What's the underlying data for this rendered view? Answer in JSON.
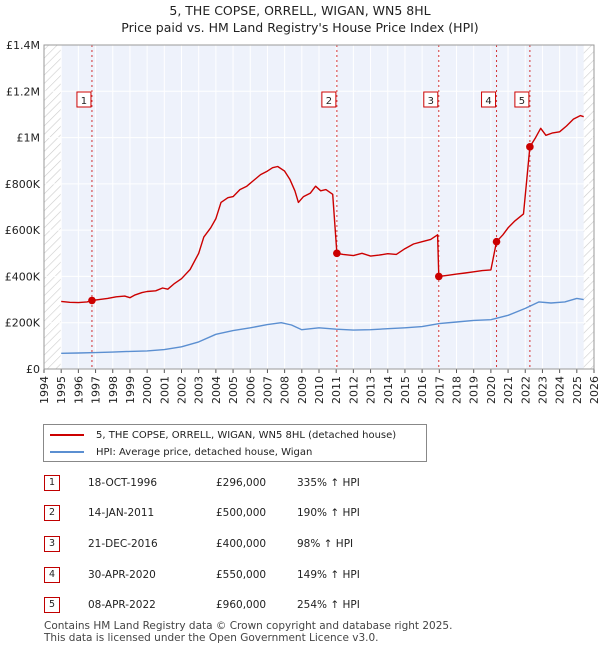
{
  "title_line1": "5, THE COPSE, ORRELL, WIGAN, WN5 8HL",
  "title_line2": "Price paid vs. HM Land Registry's House Price Index (HPI)",
  "chart_data": {
    "type": "line",
    "xlim": [
      1994,
      2026
    ],
    "ylim": [
      0,
      1400000
    ],
    "x_ticks": [
      "1994",
      "1995",
      "1996",
      "1997",
      "1998",
      "1999",
      "2000",
      "2001",
      "2002",
      "2003",
      "2004",
      "2005",
      "2006",
      "2007",
      "2008",
      "2009",
      "2010",
      "2011",
      "2012",
      "2013",
      "2014",
      "2015",
      "2016",
      "2017",
      "2018",
      "2019",
      "2020",
      "2021",
      "2022",
      "2023",
      "2024",
      "2025",
      "2026"
    ],
    "y_ticks": [
      {
        "value": 0,
        "label": "£0"
      },
      {
        "value": 200000,
        "label": "£200K"
      },
      {
        "value": 400000,
        "label": "£400K"
      },
      {
        "value": 600000,
        "label": "£600K"
      },
      {
        "value": 800000,
        "label": "£800K"
      },
      {
        "value": 1000000,
        "label": "£1M"
      },
      {
        "value": 1200000,
        "label": "£1.2M"
      },
      {
        "value": 1400000,
        "label": "£1.4M"
      }
    ],
    "hatch_ranges": [
      [
        1994,
        1995
      ],
      [
        2025.4,
        2026
      ]
    ],
    "series": [
      {
        "name": "5, THE COPSE, ORRELL, WIGAN, WN5 8HL (detached house)",
        "color": "#cc0000",
        "points": [
          [
            1995,
            292000
          ],
          [
            1995.5,
            288000
          ],
          [
            1996,
            287000
          ],
          [
            1996.5,
            290000
          ],
          [
            1996.79,
            296000
          ],
          [
            1997.2,
            300000
          ],
          [
            1997.7,
            305000
          ],
          [
            1998.2,
            312000
          ],
          [
            1998.7,
            315000
          ],
          [
            1999,
            308000
          ],
          [
            1999.3,
            320000
          ],
          [
            1999.7,
            330000
          ],
          [
            2000,
            335000
          ],
          [
            2000.5,
            338000
          ],
          [
            2000.9,
            350000
          ],
          [
            2001.2,
            345000
          ],
          [
            2001.6,
            370000
          ],
          [
            2002,
            390000
          ],
          [
            2002.5,
            430000
          ],
          [
            2003,
            500000
          ],
          [
            2003.3,
            570000
          ],
          [
            2003.7,
            610000
          ],
          [
            2004,
            650000
          ],
          [
            2004.3,
            720000
          ],
          [
            2004.7,
            740000
          ],
          [
            2005,
            745000
          ],
          [
            2005.4,
            775000
          ],
          [
            2005.8,
            790000
          ],
          [
            2006.2,
            815000
          ],
          [
            2006.6,
            840000
          ],
          [
            2007,
            855000
          ],
          [
            2007.3,
            870000
          ],
          [
            2007.6,
            875000
          ],
          [
            2008,
            855000
          ],
          [
            2008.3,
            820000
          ],
          [
            2008.6,
            770000
          ],
          [
            2008.8,
            720000
          ],
          [
            2009.1,
            745000
          ],
          [
            2009.5,
            760000
          ],
          [
            2009.8,
            790000
          ],
          [
            2010.1,
            770000
          ],
          [
            2010.4,
            775000
          ],
          [
            2010.8,
            755000
          ],
          [
            2011.04,
            500000
          ],
          [
            2011.4,
            495000
          ],
          [
            2012,
            490000
          ],
          [
            2012.5,
            500000
          ],
          [
            2013,
            488000
          ],
          [
            2013.5,
            492000
          ],
          [
            2014,
            498000
          ],
          [
            2014.5,
            495000
          ],
          [
            2015,
            520000
          ],
          [
            2015.5,
            540000
          ],
          [
            2016,
            550000
          ],
          [
            2016.5,
            560000
          ],
          [
            2016.9,
            580000
          ],
          [
            2016.97,
            400000
          ],
          [
            2017.5,
            405000
          ],
          [
            2018,
            410000
          ],
          [
            2018.5,
            415000
          ],
          [
            2019,
            420000
          ],
          [
            2019.5,
            425000
          ],
          [
            2020,
            428000
          ],
          [
            2020.33,
            550000
          ],
          [
            2020.7,
            580000
          ],
          [
            2021,
            610000
          ],
          [
            2021.4,
            640000
          ],
          [
            2021.9,
            670000
          ],
          [
            2022.27,
            960000
          ],
          [
            2022.6,
            1000000
          ],
          [
            2022.9,
            1040000
          ],
          [
            2023.2,
            1010000
          ],
          [
            2023.6,
            1020000
          ],
          [
            2024,
            1025000
          ],
          [
            2024.4,
            1050000
          ],
          [
            2024.8,
            1080000
          ],
          [
            2025.2,
            1095000
          ],
          [
            2025.4,
            1090000
          ]
        ]
      },
      {
        "name": "HPI: Average price, detached house, Wigan",
        "color": "#5b8fd1",
        "points": [
          [
            1995,
            68000
          ],
          [
            1996,
            69000
          ],
          [
            1997,
            71000
          ],
          [
            1998,
            73000
          ],
          [
            1999,
            76000
          ],
          [
            2000,
            78000
          ],
          [
            2001,
            84000
          ],
          [
            2002,
            96000
          ],
          [
            2003,
            117000
          ],
          [
            2004,
            150000
          ],
          [
            2005,
            166000
          ],
          [
            2006,
            178000
          ],
          [
            2007,
            192000
          ],
          [
            2007.8,
            200000
          ],
          [
            2008.4,
            190000
          ],
          [
            2009,
            170000
          ],
          [
            2010,
            178000
          ],
          [
            2011,
            172000
          ],
          [
            2012,
            168000
          ],
          [
            2013,
            170000
          ],
          [
            2014,
            174000
          ],
          [
            2015,
            178000
          ],
          [
            2016,
            183000
          ],
          [
            2017,
            196000
          ],
          [
            2018,
            203000
          ],
          [
            2019,
            210000
          ],
          [
            2020,
            213000
          ],
          [
            2021,
            232000
          ],
          [
            2022,
            262000
          ],
          [
            2022.8,
            290000
          ],
          [
            2023.5,
            285000
          ],
          [
            2024.3,
            290000
          ],
          [
            2025,
            305000
          ],
          [
            2025.4,
            300000
          ]
        ]
      }
    ],
    "sales": [
      {
        "label": "1",
        "x": 1996.79,
        "price": 296000
      },
      {
        "label": "2",
        "x": 2011.04,
        "price": 500000
      },
      {
        "label": "3",
        "x": 2016.97,
        "price": 400000
      },
      {
        "label": "4",
        "x": 2020.33,
        "price": 550000
      },
      {
        "label": "5",
        "x": 2022.27,
        "price": 960000
      }
    ]
  },
  "legend": {
    "property": "5, THE COPSE, ORRELL, WIGAN, WN5 8HL (detached house)",
    "hpi": "HPI: Average price, detached house, Wigan"
  },
  "colors": {
    "property": "#cc0000",
    "hpi": "#5b8fd1",
    "plot_bg": "#eef2fb"
  },
  "transactions": [
    {
      "num": "1",
      "date": "18-OCT-1996",
      "price": "£296,000",
      "hpi": "335% ↑ HPI"
    },
    {
      "num": "2",
      "date": "14-JAN-2011",
      "price": "£500,000",
      "hpi": "190% ↑ HPI"
    },
    {
      "num": "3",
      "date": "21-DEC-2016",
      "price": "£400,000",
      "hpi": "98% ↑ HPI"
    },
    {
      "num": "4",
      "date": "30-APR-2020",
      "price": "£550,000",
      "hpi": "149% ↑ HPI"
    },
    {
      "num": "5",
      "date": "08-APR-2022",
      "price": "£960,000",
      "hpi": "254% ↑ HPI"
    }
  ],
  "footer": {
    "line1": "Contains HM Land Registry data © Crown copyright and database right 2025.",
    "line2": "This data is licensed under the Open Government Licence v3.0."
  }
}
